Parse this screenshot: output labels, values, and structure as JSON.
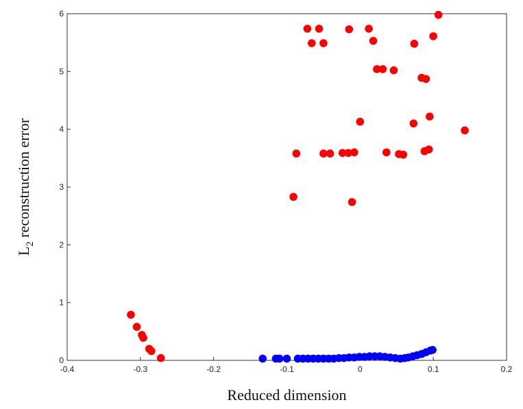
{
  "chart_data": {
    "type": "scatter",
    "title": "",
    "xlabel": "Reduced dimension",
    "ylabel": {
      "prefix": "L",
      "subscript": "2",
      "suffix": " reconstruction error"
    },
    "xlim": [
      -0.4,
      0.2
    ],
    "ylim": [
      0,
      6
    ],
    "x_ticks": [
      "-0.4",
      "-0.3",
      "-0.2",
      "-0.1",
      "0",
      "0.1",
      "0.2"
    ],
    "y_ticks": [
      "0",
      "1",
      "2",
      "3",
      "4",
      "5",
      "6"
    ],
    "grid": false,
    "legend": false,
    "series": [
      {
        "color": "#ff0000",
        "points": [
          [
            -0.313,
            0.79
          ],
          [
            -0.305,
            0.58
          ],
          [
            -0.298,
            0.44
          ],
          [
            -0.296,
            0.39
          ],
          [
            -0.288,
            0.2
          ],
          [
            -0.285,
            0.16
          ],
          [
            -0.272,
            0.04
          ],
          [
            -0.091,
            2.83
          ],
          [
            -0.087,
            3.58
          ],
          [
            -0.072,
            5.74
          ],
          [
            -0.066,
            5.49
          ],
          [
            -0.056,
            5.74
          ],
          [
            -0.05,
            5.49
          ],
          [
            -0.05,
            3.58
          ],
          [
            -0.041,
            3.58
          ],
          [
            -0.024,
            3.59
          ],
          [
            -0.016,
            3.59
          ],
          [
            -0.015,
            5.73
          ],
          [
            -0.011,
            2.74
          ],
          [
            -0.008,
            3.6
          ],
          [
            0.0,
            4.13
          ],
          [
            0.012,
            5.74
          ],
          [
            0.018,
            5.53
          ],
          [
            0.023,
            5.04
          ],
          [
            0.031,
            5.04
          ],
          [
            0.036,
            3.6
          ],
          [
            0.046,
            5.02
          ],
          [
            0.053,
            3.57
          ],
          [
            0.059,
            3.56
          ],
          [
            0.073,
            4.1
          ],
          [
            0.074,
            5.48
          ],
          [
            0.084,
            4.89
          ],
          [
            0.088,
            3.62
          ],
          [
            0.09,
            4.87
          ],
          [
            0.094,
            3.65
          ],
          [
            0.095,
            4.22
          ],
          [
            0.1,
            5.61
          ],
          [
            0.107,
            5.98
          ],
          [
            0.143,
            3.98
          ]
        ]
      },
      {
        "color": "#0000ff",
        "points": [
          [
            -0.133,
            0.03
          ],
          [
            -0.115,
            0.03
          ],
          [
            -0.11,
            0.03
          ],
          [
            -0.1,
            0.03
          ],
          [
            -0.085,
            0.03
          ],
          [
            -0.078,
            0.03
          ],
          [
            -0.071,
            0.03
          ],
          [
            -0.064,
            0.03
          ],
          [
            -0.057,
            0.03
          ],
          [
            -0.05,
            0.03
          ],
          [
            -0.043,
            0.03
          ],
          [
            -0.036,
            0.03
          ],
          [
            -0.029,
            0.04
          ],
          [
            -0.022,
            0.04
          ],
          [
            -0.015,
            0.05
          ],
          [
            -0.008,
            0.05
          ],
          [
            -0.001,
            0.06
          ],
          [
            0.006,
            0.06
          ],
          [
            0.013,
            0.07
          ],
          [
            0.02,
            0.07
          ],
          [
            0.027,
            0.07
          ],
          [
            0.034,
            0.06
          ],
          [
            0.041,
            0.05
          ],
          [
            0.048,
            0.04
          ],
          [
            0.055,
            0.03
          ],
          [
            0.061,
            0.04
          ],
          [
            0.066,
            0.05
          ],
          [
            0.072,
            0.07
          ],
          [
            0.078,
            0.09
          ],
          [
            0.084,
            0.11
          ],
          [
            0.09,
            0.14
          ],
          [
            0.096,
            0.17
          ],
          [
            0.099,
            0.18
          ]
        ]
      }
    ]
  }
}
